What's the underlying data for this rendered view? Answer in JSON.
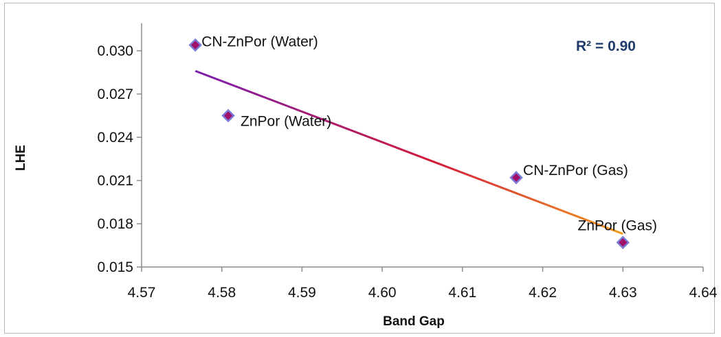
{
  "chart_data": {
    "type": "scatter",
    "title": "",
    "xlabel": "Band Gap",
    "ylabel": "LHE",
    "xlim": [
      4.57,
      4.64
    ],
    "ylim": [
      0.015,
      0.03
    ],
    "x_ticks": [
      "4.57",
      "4.58",
      "4.59",
      "4.60",
      "4.61",
      "4.62",
      "4.63",
      "4.64"
    ],
    "y_ticks": [
      "0.015",
      "0.018",
      "0.021",
      "0.024",
      "0.027",
      "0.030"
    ],
    "grid": false,
    "legend": "none",
    "points": [
      {
        "label": "CN-ZnPor (Water)",
        "x": 4.5767,
        "y": 0.0304
      },
      {
        "label": "ZnPor (Water)",
        "x": 4.5808,
        "y": 0.0255
      },
      {
        "label": "CN-ZnPor (Gas)",
        "x": 4.6167,
        "y": 0.0212
      },
      {
        "label": "ZnPor (Gas)",
        "x": 4.63,
        "y": 0.0167
      }
    ],
    "trendline": {
      "type": "linear",
      "x": [
        4.5767,
        4.63
      ],
      "y": [
        0.0286,
        0.0173
      ],
      "r_squared_label": "R² = 0.90"
    },
    "colors": {
      "marker_fill": "#a0126a",
      "marker_stroke": "#7b7bd8",
      "trend_start": "#7a1fb0",
      "trend_mid": "#d11a3a",
      "trend_end": "#f39a1f",
      "r2_text": "#1f3a6b",
      "axis": "#8c8c8c"
    }
  }
}
